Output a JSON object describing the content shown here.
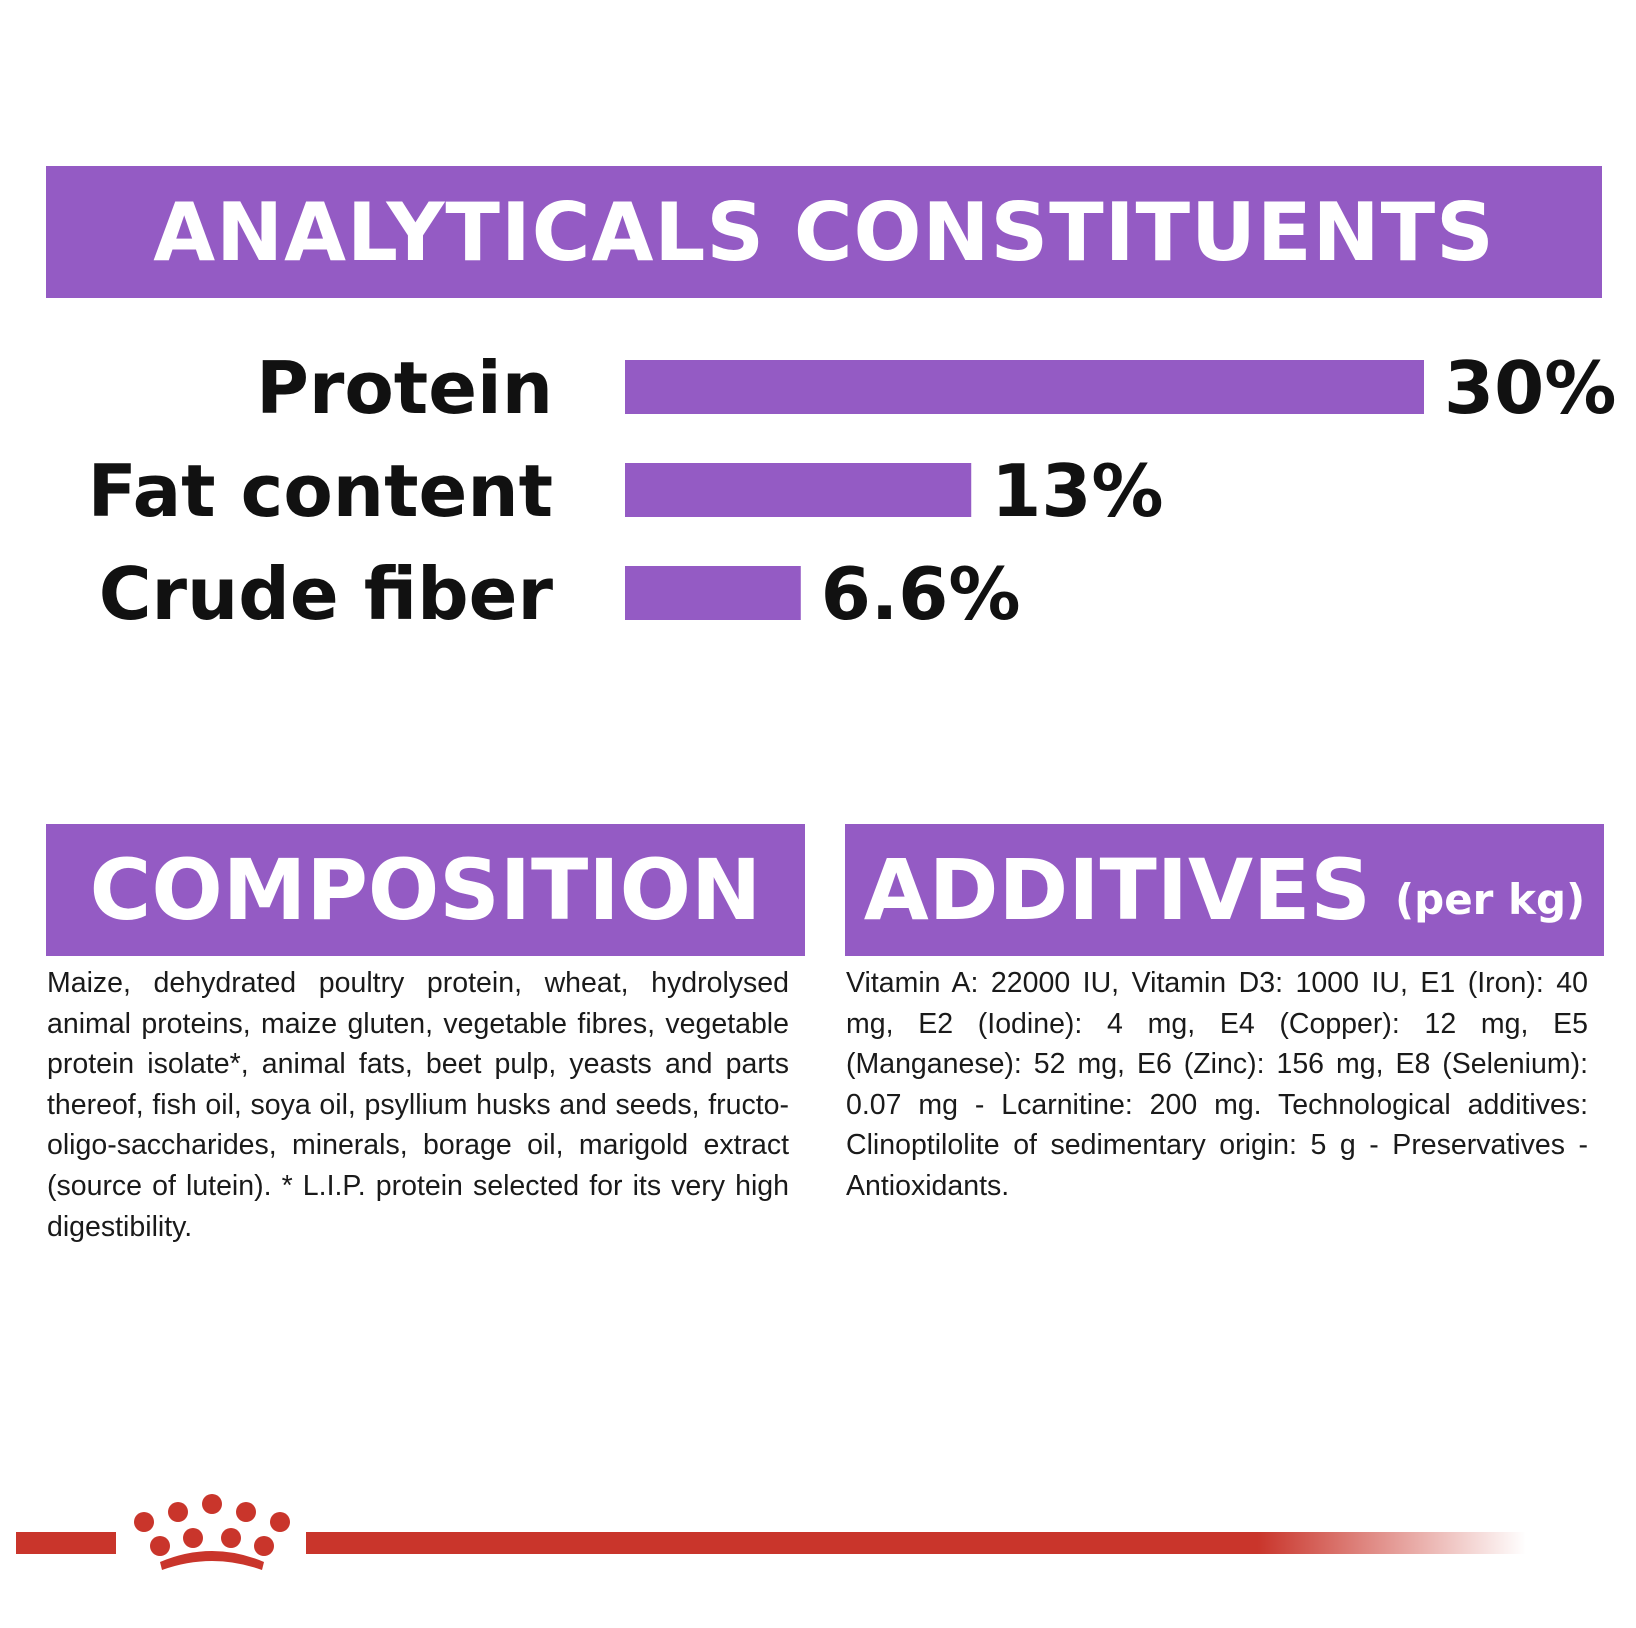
{
  "headers": {
    "analytics": "ANALYTICALS CONSTITUENTS",
    "composition": "COMPOSITION",
    "additives": "ADDITIVES",
    "additives_unit": "(per kg)"
  },
  "chart_data": {
    "type": "bar",
    "orientation": "horizontal",
    "categories": [
      "Protein",
      "Fat content",
      "Crude fiber"
    ],
    "values": [
      30,
      13,
      6.6
    ],
    "value_labels": [
      "30%",
      "13%",
      "6.6%"
    ],
    "unit": "%",
    "xlim": [
      0,
      30
    ],
    "grid": false,
    "colors": {
      "bar": "#945bc4"
    }
  },
  "composition_text": "Maize, dehydrated poultry protein, wheat, hydrolysed animal proteins, maize gluten, vegetable fibres, vegetable protein isolate*, animal fats, beet pulp, yeasts and parts thereof, fish oil, soya oil, psyllium husks and seeds, fructo-oligo-saccharides, minerals, borage oil, marigold extract (source of lutein). * L.I.P. protein selected for its very high digestibility.",
  "additives_text": "Vitamin A: 22000 IU, Vitamin D3: 1000 IU, E1 (Iron): 40 mg, E2 (Iodine): 4 mg, E4 (Copper): 12 mg, E5 (Manganese): 52 mg, E6 (Zinc): 156 mg, E8 (Selenium): 0.07 mg - Lcarnitine: 200 mg. Technological additives: Clinoptilolite of sedimentary origin: 5 g - Preservatives - Antioxidants.",
  "colors": {
    "accent": "#945bc4",
    "brand_red": "#c9352b",
    "text": "#111111"
  },
  "logo": {
    "icon": "crown-logo-icon"
  }
}
